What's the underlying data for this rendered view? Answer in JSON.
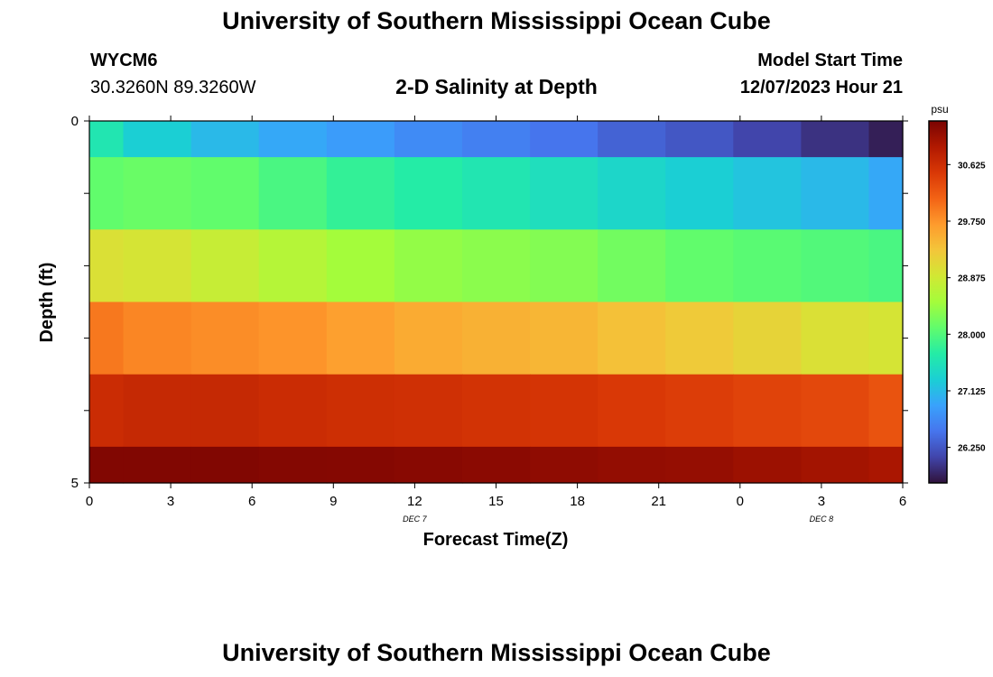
{
  "header": {
    "title": "University of Southern Mississippi Ocean Cube",
    "station_id": "WYCM6",
    "station_coords": "30.3260N  89.3260W",
    "subtitle": "2-D Salinity at Depth",
    "model_start_label": "Model Start Time",
    "model_start_value": "12/07/2023 Hour 21"
  },
  "footer": {
    "title": "University of Southern Mississippi Ocean Cube"
  },
  "chart_data": {
    "type": "heatmap",
    "title": "2-D Salinity at Depth",
    "xlabel": "Forecast Time(Z)",
    "ylabel": "Depth (ft)",
    "x_ticks": [
      "0",
      "3",
      "6",
      "9",
      "12",
      "15",
      "18",
      "21",
      "0",
      "3",
      "6"
    ],
    "date_labels": [
      {
        "label": "DEC 7",
        "at_tick": 4
      },
      {
        "label": "DEC 8",
        "at_tick": 9
      }
    ],
    "y_ticks": [
      "0",
      "5"
    ],
    "ylim": [
      0,
      5
    ],
    "colorbar": {
      "unit": "psu",
      "range": [
        25.7,
        31.3
      ],
      "ticks": [
        "30.625",
        "29.750",
        "28.875",
        "28.000",
        "27.125",
        "26.250"
      ],
      "tick_values": [
        30.625,
        29.75,
        28.875,
        28.0,
        27.125,
        26.25
      ],
      "colors": [
        "#30123b",
        "#4145ab",
        "#4675ed",
        "#39a2fc",
        "#1bcfd4",
        "#24eca6",
        "#61fc6c",
        "#a4fc3b",
        "#d1e834",
        "#f3c63a",
        "#fe9b2d",
        "#f36315",
        "#d93806",
        "#b11901",
        "#7a0402"
      ]
    },
    "time_steps": 13,
    "depth_bands": [
      {
        "depth_range": [
          0.0,
          0.5
        ],
        "values": [
          27.6,
          27.3,
          27.1,
          26.95,
          26.85,
          26.7,
          26.6,
          26.5,
          26.35,
          26.25,
          26.1,
          25.95,
          25.8
        ]
      },
      {
        "depth_range": [
          0.5,
          1.5
        ],
        "values": [
          28.1,
          28.15,
          28.1,
          27.95,
          27.8,
          27.7,
          27.6,
          27.5,
          27.4,
          27.3,
          27.2,
          27.1,
          26.95
        ]
      },
      {
        "depth_range": [
          1.5,
          2.5
        ],
        "values": [
          29.0,
          28.95,
          28.8,
          28.65,
          28.5,
          28.4,
          28.35,
          28.3,
          28.2,
          28.1,
          28.05,
          28.0,
          27.95
        ]
      },
      {
        "depth_range": [
          2.5,
          3.5
        ],
        "values": [
          29.95,
          29.85,
          29.8,
          29.75,
          29.65,
          29.55,
          29.5,
          29.45,
          29.35,
          29.25,
          29.15,
          29.0,
          28.95
        ]
      },
      {
        "depth_range": [
          3.5,
          4.5
        ],
        "values": [
          30.65,
          30.7,
          30.7,
          30.65,
          30.62,
          30.6,
          30.57,
          30.55,
          30.5,
          30.45,
          30.4,
          30.35,
          30.25
        ]
      },
      {
        "depth_range": [
          4.5,
          5.0
        ],
        "values": [
          31.25,
          31.25,
          31.25,
          31.23,
          31.22,
          31.2,
          31.18,
          31.15,
          31.12,
          31.1,
          31.05,
          31.0,
          30.95
        ]
      }
    ]
  }
}
